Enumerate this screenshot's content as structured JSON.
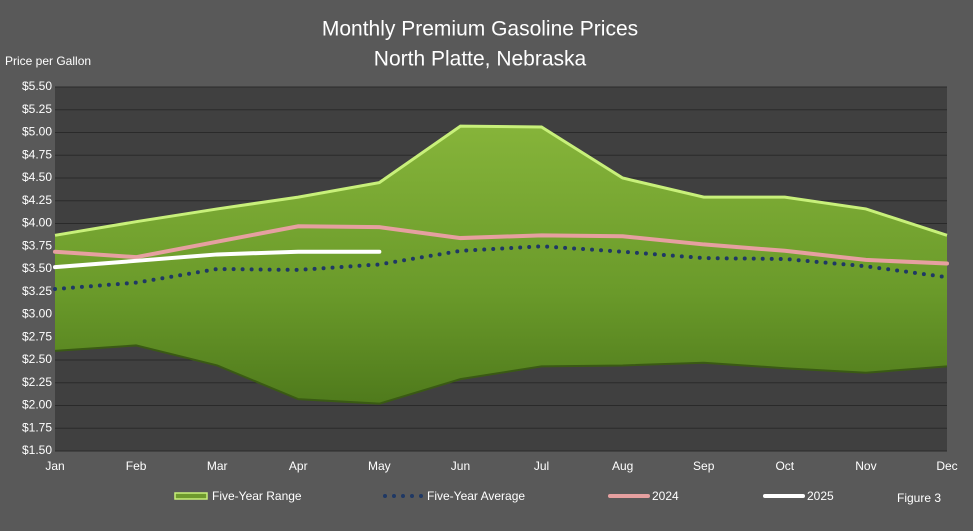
{
  "chart_data": {
    "type": "line",
    "title": "Monthly Premium Gasoline Prices",
    "subtitle": "North Platte, Nebraska",
    "y_label": "Price per Gallon",
    "annotation": "Figure 3",
    "categories": [
      "Jan",
      "Feb",
      "Mar",
      "Apr",
      "May",
      "Jun",
      "Jul",
      "Aug",
      "Sep",
      "Oct",
      "Nov",
      "Dec"
    ],
    "ylim": [
      1.5,
      5.5
    ],
    "yticks": [
      {
        "value": 1.5,
        "label": "$1.50"
      },
      {
        "value": 1.75,
        "label": "$1.75"
      },
      {
        "value": 2.0,
        "label": "$2.00"
      },
      {
        "value": 2.25,
        "label": "$2.25"
      },
      {
        "value": 2.5,
        "label": "$2.50"
      },
      {
        "value": 2.75,
        "label": "$2.75"
      },
      {
        "value": 3.0,
        "label": "$3.00"
      },
      {
        "value": 3.25,
        "label": "$3.25"
      },
      {
        "value": 3.5,
        "label": "$3.50"
      },
      {
        "value": 3.75,
        "label": "$3.75"
      },
      {
        "value": 4.0,
        "label": "$4.00"
      },
      {
        "value": 4.25,
        "label": "$4.25"
      },
      {
        "value": 4.5,
        "label": "$4.50"
      },
      {
        "value": 4.75,
        "label": "$4.75"
      },
      {
        "value": 5.0,
        "label": "$5.00"
      },
      {
        "value": 5.25,
        "label": "$5.25"
      },
      {
        "value": 5.5,
        "label": "$5.50"
      }
    ],
    "grid": true,
    "range": {
      "name": "Five-Year Range",
      "color": "#6f9a2e",
      "high": [
        3.87,
        4.02,
        4.16,
        4.29,
        4.45,
        5.07,
        5.06,
        4.5,
        4.29,
        4.29,
        4.16,
        3.87
      ],
      "low": [
        2.6,
        2.66,
        2.44,
        2.07,
        2.02,
        2.29,
        2.43,
        2.44,
        2.47,
        2.41,
        2.36,
        2.43
      ]
    },
    "series": [
      {
        "name": "Five-Year Average",
        "color": "#1f3864",
        "style": "dotted",
        "values": [
          3.28,
          3.35,
          3.5,
          3.49,
          3.55,
          3.7,
          3.75,
          3.69,
          3.62,
          3.61,
          3.53,
          3.41
        ]
      },
      {
        "name": "2024",
        "color": "#e6a0a0",
        "style": "solid",
        "values": [
          3.69,
          3.63,
          3.8,
          3.97,
          3.96,
          3.84,
          3.87,
          3.86,
          3.77,
          3.7,
          3.6,
          3.56
        ]
      },
      {
        "name": "2025",
        "color": "#ffffff",
        "style": "solid",
        "values": [
          3.52,
          3.59,
          3.66,
          3.69,
          3.69,
          null,
          null,
          null,
          null,
          null,
          null,
          null
        ]
      }
    ]
  }
}
